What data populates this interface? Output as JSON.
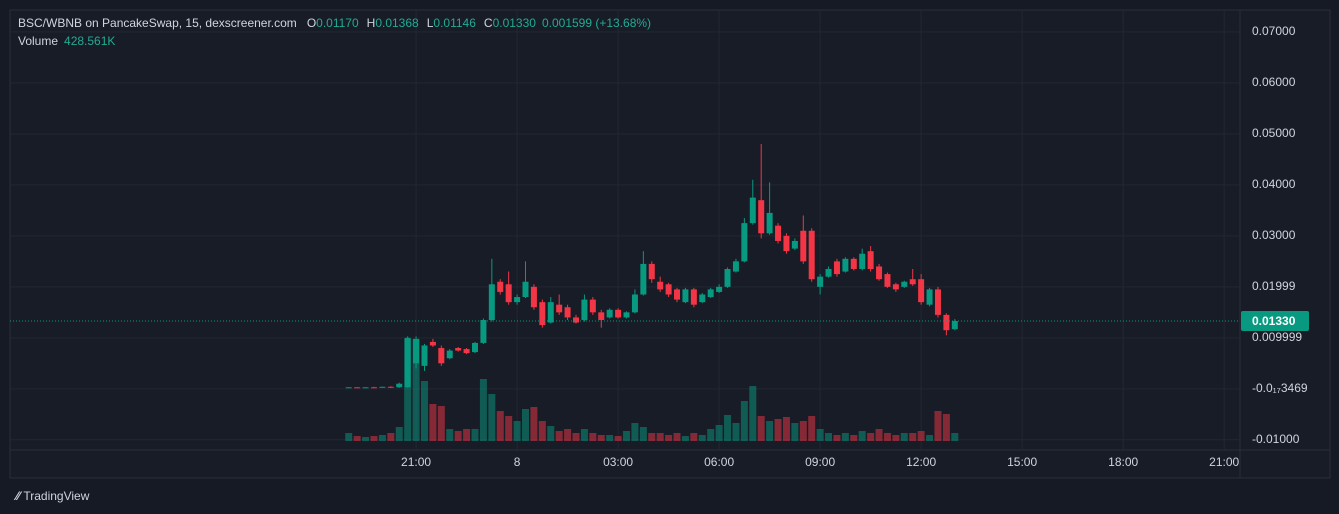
{
  "header": {
    "symbol": "BSC/WBNB on PancakeSwap, 15, dexscreener.com",
    "fields": [
      {
        "key": "O",
        "value": "0.01170"
      },
      {
        "key": "H",
        "value": "0.01368"
      },
      {
        "key": "L",
        "value": "0.01146"
      },
      {
        "key": "C",
        "value": "0.01330"
      }
    ],
    "change": "0.001599 (+13.68%)",
    "volume_key": "Volume",
    "volume_value": "428.561K"
  },
  "footer": {
    "brand": "TradingView"
  },
  "chart_data": {
    "type": "candlestick",
    "x": [
      19,
      19.25,
      19.5,
      19.75,
      20,
      20.25,
      20.5,
      20.75,
      21,
      21.25,
      21.5,
      21.75,
      22,
      22.25,
      22.5,
      22.75,
      23,
      23.25,
      23.5,
      23.75,
      24,
      24.25,
      24.5,
      24.75,
      25,
      25.25,
      25.5,
      25.75,
      26,
      26.25,
      26.5,
      26.75,
      27,
      27.25,
      27.5,
      27.75,
      28,
      28.25,
      28.5,
      28.75,
      29,
      29.25,
      29.5,
      29.75,
      30,
      30.25,
      30.5,
      30.75,
      31,
      31.25,
      31.5,
      31.75,
      32,
      32.25,
      32.5,
      32.75,
      33,
      33.25,
      33.5,
      33.75,
      34,
      34.25,
      34.5,
      34.75,
      35,
      35.25,
      35.5,
      35.75,
      36,
      36.25,
      36.5,
      36.75,
      37
    ],
    "open": [
      0.0002,
      0.0003,
      0.0002,
      0.0003,
      0.0002,
      0.0004,
      0.0003,
      0.0003,
      0.005,
      0.0045,
      0.0092,
      0.008,
      0.006,
      0.008,
      0.0078,
      0.0072,
      0.009,
      0.0135,
      0.021,
      0.0205,
      0.017,
      0.018,
      0.02,
      0.017,
      0.013,
      0.0165,
      0.016,
      0.014,
      0.0135,
      0.0175,
      0.015,
      0.014,
      0.0155,
      0.014,
      0.015,
      0.0185,
      0.0245,
      0.021,
      0.0205,
      0.0195,
      0.017,
      0.0195,
      0.017,
      0.018,
      0.019,
      0.02,
      0.023,
      0.025,
      0.0325,
      0.037,
      0.0305,
      0.032,
      0.03,
      0.0275,
      0.031,
      0.031,
      0.02,
      0.022,
      0.025,
      0.023,
      0.0255,
      0.0235,
      0.027,
      0.024,
      0.0225,
      0.0205,
      0.02,
      0.0215,
      0.0215,
      0.0165,
      0.0195,
      0.0145,
      0.0117
    ],
    "high": [
      0.0003,
      0.0003,
      0.0003,
      0.0004,
      0.0004,
      0.0005,
      0.0012,
      0.0103,
      0.0103,
      0.0088,
      0.0098,
      0.0085,
      0.0078,
      0.0082,
      0.008,
      0.0092,
      0.0138,
      0.0255,
      0.0215,
      0.023,
      0.0185,
      0.025,
      0.0205,
      0.0175,
      0.018,
      0.0185,
      0.0165,
      0.0145,
      0.0185,
      0.018,
      0.0155,
      0.0158,
      0.0158,
      0.0152,
      0.0195,
      0.027,
      0.025,
      0.022,
      0.0208,
      0.0198,
      0.0198,
      0.0198,
      0.0188,
      0.0198,
      0.0205,
      0.0238,
      0.0255,
      0.0335,
      0.041,
      0.048,
      0.0405,
      0.0325,
      0.0305,
      0.0295,
      0.034,
      0.0315,
      0.0225,
      0.024,
      0.0255,
      0.0258,
      0.0258,
      0.0275,
      0.028,
      0.0245,
      0.0228,
      0.0208,
      0.0212,
      0.0235,
      0.0225,
      0.0198,
      0.02,
      0.0148,
      0.01368
    ],
    "low": [
      0.0002,
      0.0002,
      0.0002,
      0.0002,
      0.0002,
      0.0002,
      0.0002,
      0.0002,
      0.004,
      0.0035,
      0.0082,
      0.0045,
      0.0058,
      0.0073,
      0.0068,
      0.007,
      0.0088,
      0.0132,
      0.0185,
      0.0165,
      0.0165,
      0.0178,
      0.0155,
      0.012,
      0.0128,
      0.0145,
      0.0135,
      0.0128,
      0.0132,
      0.0145,
      0.012,
      0.0138,
      0.0138,
      0.0138,
      0.0148,
      0.0183,
      0.0208,
      0.019,
      0.018,
      0.017,
      0.0168,
      0.016,
      0.0168,
      0.0178,
      0.0188,
      0.0198,
      0.0228,
      0.0248,
      0.0322,
      0.0295,
      0.0302,
      0.0285,
      0.0265,
      0.0272,
      0.0245,
      0.021,
      0.0185,
      0.0218,
      0.022,
      0.0228,
      0.0232,
      0.0232,
      0.023,
      0.0212,
      0.0198,
      0.019,
      0.0198,
      0.0202,
      0.0165,
      0.0162,
      0.014,
      0.0105,
      0.01146
    ],
    "close": [
      0.0003,
      0.0002,
      0.0003,
      0.0002,
      0.0004,
      0.0003,
      0.001,
      0.01,
      0.0098,
      0.0085,
      0.0085,
      0.005,
      0.0075,
      0.0075,
      0.007,
      0.009,
      0.0135,
      0.0205,
      0.019,
      0.017,
      0.018,
      0.021,
      0.016,
      0.0125,
      0.017,
      0.015,
      0.014,
      0.013,
      0.0175,
      0.015,
      0.0135,
      0.0155,
      0.014,
      0.015,
      0.0185,
      0.0245,
      0.0215,
      0.0195,
      0.0185,
      0.0175,
      0.0195,
      0.0165,
      0.0185,
      0.0195,
      0.02,
      0.0235,
      0.025,
      0.0325,
      0.0375,
      0.0305,
      0.0345,
      0.029,
      0.027,
      0.029,
      0.025,
      0.0215,
      0.022,
      0.0235,
      0.0225,
      0.0255,
      0.0235,
      0.0265,
      0.0235,
      0.0215,
      0.02,
      0.0195,
      0.021,
      0.0205,
      0.017,
      0.0195,
      0.0145,
      0.0115,
      0.0133
    ],
    "volume": [
      428000,
      267000,
      214000,
      267000,
      321000,
      428000,
      749000,
      5457000,
      5457000,
      3210000,
      1979000,
      1872000,
      642000,
      535000,
      642000,
      642000,
      3317000,
      2514000,
      1605000,
      1337000,
      1070000,
      1712000,
      1819000,
      1070000,
      802000,
      535000,
      642000,
      428000,
      642000,
      428000,
      321000,
      321000,
      267000,
      535000,
      963000,
      749000,
      428000,
      428000,
      321000,
      428000,
      267000,
      428000,
      321000,
      642000,
      856000,
      1391000,
      963000,
      2140000,
      2942000,
      1337000,
      1070000,
      1177000,
      1284000,
      963000,
      1070000,
      1337000,
      642000,
      428000,
      321000,
      428000,
      321000,
      535000,
      428000,
      642000,
      428000,
      321000,
      428000,
      428000,
      535000,
      321000,
      1605000,
      1444000,
      428561
    ],
    "up_color": "#089981",
    "down_color": "#f23645",
    "ylim": [
      -0.012,
      0.0743
    ],
    "yticks": [
      {
        "value": 0.07,
        "label": "0.07000"
      },
      {
        "value": 0.06,
        "label": "0.06000"
      },
      {
        "value": 0.05,
        "label": "0.05000"
      },
      {
        "value": 0.04,
        "label": "0.04000"
      },
      {
        "value": 0.03,
        "label": "0.03000"
      },
      0.01999,
      0.009999,
      {
        "value": -3.469e-18,
        "label": "-0.0₁₇3469"
      },
      {
        "value": -0.01,
        "label": "-0.01000"
      }
    ],
    "xlim": [
      8.94,
      45.47
    ],
    "xticks": [
      {
        "value": 21,
        "label": "21:00"
      },
      {
        "value": 24,
        "label": "8"
      },
      {
        "value": 27,
        "label": "03:00"
      },
      {
        "value": 30,
        "label": "06:00"
      },
      {
        "value": 33,
        "label": "09:00"
      },
      {
        "value": 36,
        "label": "12:00"
      },
      {
        "value": 39,
        "label": "15:00"
      },
      {
        "value": 42,
        "label": "18:00"
      },
      {
        "value": 45,
        "label": "21:00"
      }
    ],
    "grid": true,
    "last_price": {
      "value": 0.0133,
      "label": "0.01330"
    }
  }
}
